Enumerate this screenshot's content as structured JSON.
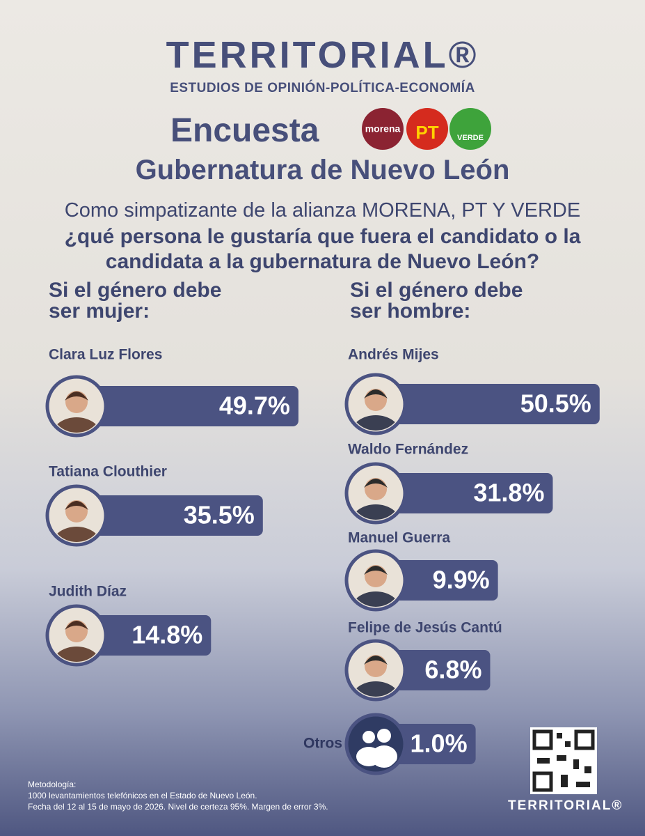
{
  "header": {
    "brand": "TERRITORIAL®",
    "tagline": "ESTUDIOS DE OPINIÓN-POLÍTICA-ECONOMÍA",
    "survey": "Encuesta",
    "parties": [
      "morena",
      "PT",
      "VERDE"
    ],
    "title": "Gubernatura de Nuevo León"
  },
  "question": {
    "intro": "Como simpatizante de la alianza MORENA, PT Y VERDE",
    "text": "¿qué persona le gustaría que fuera el candidato o la candidata a la gubernatura de Nuevo León?"
  },
  "chart_data": [
    {
      "type": "bar",
      "title": "Si el género debe ser mujer:",
      "categories": [
        "Clara Luz Flores",
        "Tatiana Clouthier",
        "Judith Díaz"
      ],
      "values": [
        49.7,
        35.5,
        14.8
      ],
      "value_labels": [
        "49.7%",
        "35.5%",
        "14.8%"
      ],
      "color": "#4b5382"
    },
    {
      "type": "bar",
      "title": "Si el género debe ser hombre:",
      "categories": [
        "Andrés Mijes",
        "Waldo Fernández",
        "Manuel Guerra",
        "Felipe de Jesús Cantú",
        "Otros"
      ],
      "values": [
        50.5,
        31.8,
        9.9,
        6.8,
        1.0
      ],
      "value_labels": [
        "50.5%",
        "31.8%",
        "9.9%",
        "6.8%",
        "1.0%"
      ],
      "color": "#4b5382"
    }
  ],
  "methodology": {
    "heading": "Metodología:",
    "lines": [
      "1000 levantamientos telefónicos en el Estado de Nuevo León.",
      "Fecha del 12 al 15 de mayo de 2026.  Nivel de certeza 95%.  Margen de error 3%."
    ]
  },
  "footer": {
    "brand": "TERRITORIAL®"
  }
}
